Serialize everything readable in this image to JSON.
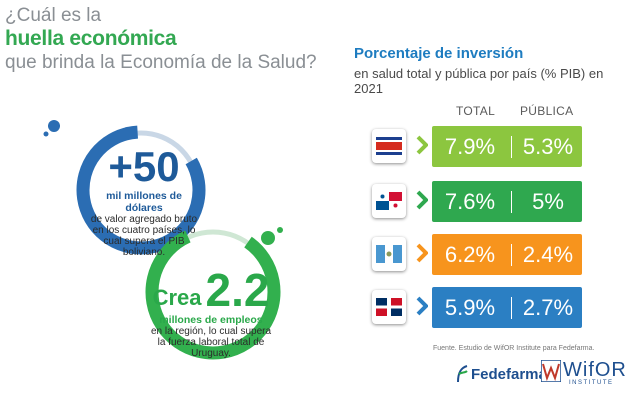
{
  "heading": {
    "line1": "¿Cuál es la",
    "line2": "huella económica",
    "line3": "que brinda la Economía de la Salud?"
  },
  "stat1": {
    "value": "+50",
    "bold_text": "mil millones de dólares",
    "text": "de valor agregado bruto en los cuatro países, lo cual supera el PIB boliviano."
  },
  "stat2": {
    "prefix": "Crea",
    "value": "2.2",
    "bold_text": "millones de empleos",
    "text": "en la región, lo cual supera la fuerza laboral total de Uruguay."
  },
  "panel": {
    "title": "Porcentaje de inversión",
    "subtitle": "en salud total y pública por país (% PIB) en 2021",
    "col_total": "TOTAL",
    "col_publica": "PÚBLICA"
  },
  "rows": [
    {
      "flag": "costa-rica-flag",
      "color": "#8cc63f",
      "total": "7.9%",
      "publica": "5.3%"
    },
    {
      "flag": "panama-flag",
      "color": "#2fa84f",
      "total": "7.6%",
      "publica": "5%"
    },
    {
      "flag": "guatemala-flag",
      "color": "#f7941d",
      "total": "6.2%",
      "publica": "2.4%"
    },
    {
      "flag": "dominican-republic-flag",
      "color": "#2b7fc3",
      "total": "5.9%",
      "publica": "2.7%"
    }
  ],
  "source": "Fuente. Estudio de WifOR Institute para Fedefarma.",
  "logos": {
    "fedefarma": "Fedefarma",
    "wifor": "WifOR",
    "wifor_sub": "INSTITUTE"
  },
  "colors": {
    "blue": "#1e5a99",
    "green": "#2aa84a",
    "light_blue": "#1e7cc0"
  }
}
